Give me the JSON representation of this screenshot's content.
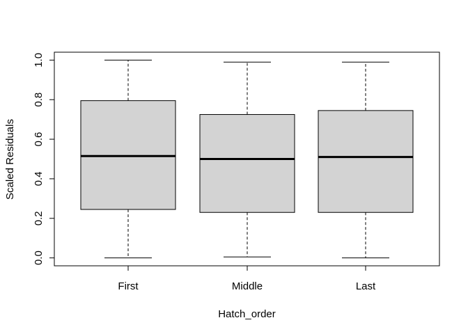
{
  "chart_data": {
    "type": "boxplot",
    "title": "",
    "xlabel": "Hatch_order",
    "ylabel": "Scaled Residuals",
    "categories": [
      "First",
      "Middle",
      "Last"
    ],
    "boxes": [
      {
        "category": "First",
        "min": 0.0,
        "q1": 0.245,
        "median": 0.515,
        "q3": 0.795,
        "max": 1.0
      },
      {
        "category": "Middle",
        "min": 0.005,
        "q1": 0.23,
        "median": 0.5,
        "q3": 0.725,
        "max": 0.99
      },
      {
        "category": "Last",
        "min": 0.0,
        "q1": 0.23,
        "median": 0.51,
        "q3": 0.745,
        "max": 0.99
      }
    ],
    "ylim": [
      -0.04,
      1.04
    ],
    "yticks": [
      0.0,
      0.2,
      0.4,
      0.6,
      0.8,
      1.0
    ],
    "ytick_labels": [
      "0.0",
      "0.2",
      "0.4",
      "0.6",
      "0.8",
      "1.0"
    ],
    "grid": false,
    "colors": {
      "box_fill": "#d3d3d3",
      "stroke": "#000000",
      "background": "#ffffff"
    }
  }
}
